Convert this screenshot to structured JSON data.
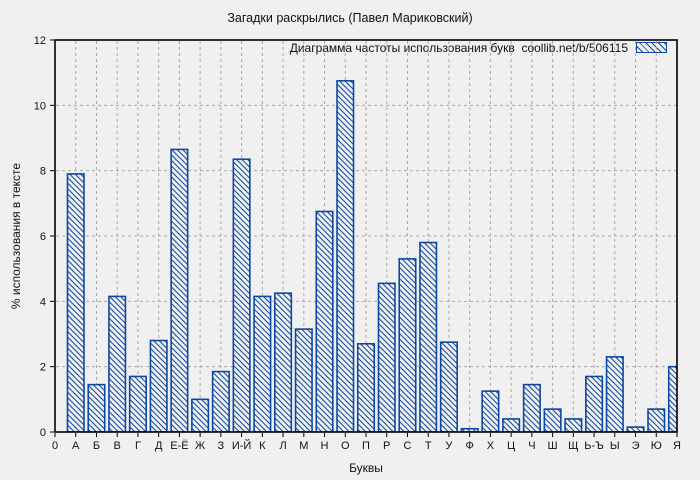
{
  "window": {
    "background_color": "#f0f0f0"
  },
  "chart_data": {
    "type": "bar",
    "title": "Загадки раскрылись (Павел Мариковский)",
    "series_label": "Диаграмма частоты использования букв  coollib.net/b/506115",
    "xlabel": "Буквы",
    "ylabel": "% использования в тексте",
    "origin_tick_label": "0",
    "categories": [
      "А",
      "Б",
      "В",
      "Г",
      "Д",
      "Е-Ё",
      "Ж",
      "З",
      "И-Й",
      "К",
      "Л",
      "М",
      "Н",
      "О",
      "П",
      "Р",
      "С",
      "Т",
      "У",
      "Ф",
      "Х",
      "Ц",
      "Ч",
      "Ш",
      "Щ",
      "Ь-Ъ",
      "Ы",
      "Э",
      "Ю",
      "Я"
    ],
    "values": [
      7.9,
      1.45,
      4.15,
      1.7,
      2.8,
      8.65,
      1.0,
      1.85,
      8.35,
      4.15,
      4.25,
      3.15,
      6.75,
      10.75,
      2.7,
      4.55,
      5.3,
      5.8,
      2.75,
      0.1,
      1.25,
      0.4,
      1.45,
      0.7,
      0.4,
      1.7,
      2.3,
      0.15,
      0.7,
      2.0
    ],
    "ylim": [
      0,
      12
    ],
    "yticks": [
      0,
      2,
      4,
      6,
      8,
      10,
      12
    ],
    "grid": true,
    "grid_style": "dashed",
    "legend_position": "top-right",
    "bar_style": "diagonal-hatch"
  },
  "colors": {
    "bar_outline": "#0d47a1",
    "bar_fill": "#f0f0f0",
    "grid": "#a9a9a9",
    "axis": "#000000",
    "text": "#111111"
  }
}
